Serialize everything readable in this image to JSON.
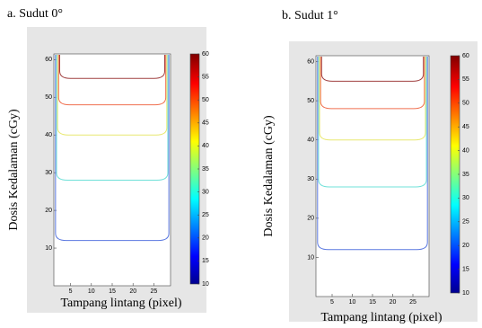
{
  "chart_data": [
    {
      "type": "contour",
      "title": "a. Sudut 0°",
      "ylabel": "Dosis Kedalaman (cGy)",
      "xlabel": "Tampang lintang (pixel)",
      "xlim": [
        1,
        29
      ],
      "xticks": [
        5,
        10,
        15,
        20,
        25
      ],
      "ylim": [
        0,
        61.5
      ],
      "yticks": [
        10,
        20,
        30,
        40,
        50,
        60
      ],
      "clim": [
        10,
        60
      ],
      "cticks": [
        10,
        15,
        20,
        25,
        30,
        35,
        40,
        45,
        50,
        55,
        60
      ],
      "contours": [
        {
          "level": 20,
          "y": 12,
          "color": "#5a78e0"
        },
        {
          "level": 30,
          "y": 28,
          "color": "#6fe0d8"
        },
        {
          "level": 40,
          "y": 40,
          "color": "#e8e870"
        },
        {
          "level": 50,
          "y": 48,
          "color": "#f07050"
        },
        {
          "level": 57,
          "y": 55,
          "color": "#a04040"
        }
      ]
    },
    {
      "type": "contour",
      "title": "b. Sudut 1°",
      "ylabel": "Dosis Kedalaman (cGy)",
      "xlabel": "Tampang lintang (pixel)",
      "xlim": [
        1,
        29
      ],
      "xticks": [
        5,
        10,
        15,
        20,
        25
      ],
      "ylim": [
        0,
        61.5
      ],
      "yticks": [
        10,
        20,
        30,
        40,
        50,
        60
      ],
      "clim": [
        10,
        60
      ],
      "cticks": [
        10,
        15,
        20,
        25,
        30,
        35,
        40,
        45,
        50,
        55,
        60
      ],
      "contours": [
        {
          "level": 20,
          "y": 12,
          "color": "#5a78e0"
        },
        {
          "level": 30,
          "y": 28,
          "color": "#6fe0d8"
        },
        {
          "level": 40,
          "y": 40,
          "color": "#e8e870"
        },
        {
          "level": 50,
          "y": 48,
          "color": "#f07050"
        },
        {
          "level": 57,
          "y": 55,
          "color": "#a04040"
        }
      ]
    }
  ]
}
